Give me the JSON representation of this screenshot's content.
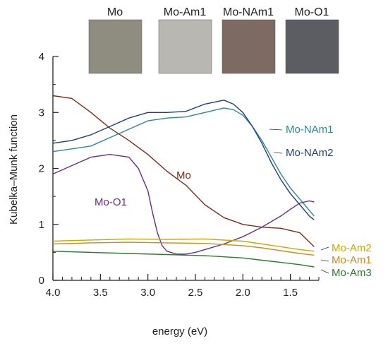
{
  "chart_data": {
    "type": "line",
    "title": "",
    "xlabel": "energy (eV)",
    "ylabel": "Kubelka–Munk function",
    "xlim": [
      4.0,
      1.2
    ],
    "ylim": [
      0,
      4
    ],
    "x_reversed": true,
    "x_ticks": [
      4.0,
      3.5,
      3.0,
      2.5,
      2.0,
      1.5
    ],
    "x_tick_labels": [
      "4.0",
      "3.5",
      "3.0",
      "2.5",
      "2.0",
      "1.5"
    ],
    "y_ticks": [
      0,
      1,
      2,
      3,
      4
    ],
    "y_tick_labels": [
      "0",
      "1",
      "2",
      "3",
      "4"
    ],
    "grid": false,
    "legend": "none (series labeled directly on the plot)",
    "sample_photos": [
      {
        "label": "Mo",
        "color": "#8f8c80"
      },
      {
        "label": "Mo-Am1",
        "color": "#b9b7b2"
      },
      {
        "label": "Mo-NAm1",
        "color": "#7d6a62"
      },
      {
        "label": "Mo-O1",
        "color": "#5b5d63"
      }
    ],
    "series": [
      {
        "name": "Mo",
        "color": "#7a2e1a",
        "x": [
          4.0,
          3.8,
          3.6,
          3.4,
          3.2,
          3.0,
          2.8,
          2.6,
          2.4,
          2.2,
          2.0,
          1.8,
          1.6,
          1.4,
          1.25
        ],
        "y": [
          3.3,
          3.25,
          3.0,
          2.72,
          2.5,
          2.25,
          1.95,
          1.7,
          1.35,
          1.12,
          1.0,
          0.95,
          0.93,
          0.85,
          0.6
        ]
      },
      {
        "name": "Mo-NAm1",
        "color": "#2a8a8a",
        "x": [
          4.0,
          3.8,
          3.6,
          3.4,
          3.2,
          3.0,
          2.8,
          2.6,
          2.4,
          2.2,
          2.1,
          2.0,
          1.9,
          1.8,
          1.7,
          1.6,
          1.5,
          1.4,
          1.3,
          1.25
        ],
        "y": [
          2.3,
          2.35,
          2.4,
          2.55,
          2.7,
          2.85,
          2.9,
          2.92,
          3.0,
          3.08,
          3.05,
          2.95,
          2.75,
          2.5,
          2.2,
          1.9,
          1.65,
          1.45,
          1.25,
          1.15
        ]
      },
      {
        "name": "Mo-NAm2",
        "color": "#1f3f85",
        "x": [
          4.0,
          3.8,
          3.6,
          3.4,
          3.2,
          3.0,
          2.8,
          2.6,
          2.4,
          2.2,
          2.1,
          2.0,
          1.9,
          1.8,
          1.7,
          1.6,
          1.5,
          1.4,
          1.3,
          1.25
        ],
        "y": [
          2.45,
          2.5,
          2.6,
          2.75,
          2.9,
          3.0,
          3.0,
          3.02,
          3.15,
          3.22,
          3.15,
          3.0,
          2.75,
          2.45,
          2.1,
          1.8,
          1.55,
          1.35,
          1.15,
          1.08
        ]
      },
      {
        "name": "Mo-O1",
        "color": "#6a2c8c",
        "x": [
          4.0,
          3.8,
          3.6,
          3.4,
          3.2,
          3.1,
          3.0,
          2.95,
          2.9,
          2.85,
          2.8,
          2.7,
          2.6,
          2.5,
          2.4,
          2.2,
          2.0,
          1.8,
          1.6,
          1.5,
          1.4,
          1.3,
          1.25
        ],
        "y": [
          1.9,
          2.05,
          2.2,
          2.25,
          2.2,
          2.0,
          1.6,
          1.2,
          0.85,
          0.62,
          0.52,
          0.47,
          0.47,
          0.5,
          0.55,
          0.65,
          0.78,
          0.95,
          1.15,
          1.27,
          1.38,
          1.42,
          1.4
        ]
      },
      {
        "name": "Mo-Am2",
        "color": "#c9a800",
        "x": [
          4.0,
          3.6,
          3.2,
          2.8,
          2.4,
          2.0,
          1.8,
          1.6,
          1.4,
          1.25
        ],
        "y": [
          0.7,
          0.72,
          0.74,
          0.73,
          0.74,
          0.7,
          0.65,
          0.6,
          0.55,
          0.52
        ]
      },
      {
        "name": "Mo-Am1",
        "color": "#d18a1c",
        "x": [
          4.0,
          3.6,
          3.2,
          2.8,
          2.4,
          2.0,
          1.8,
          1.6,
          1.4,
          1.25
        ],
        "y": [
          0.65,
          0.67,
          0.68,
          0.67,
          0.66,
          0.62,
          0.58,
          0.53,
          0.48,
          0.45
        ]
      },
      {
        "name": "Mo-Am3",
        "color": "#2e7a2e",
        "x": [
          4.0,
          3.6,
          3.2,
          2.8,
          2.4,
          2.0,
          1.8,
          1.6,
          1.4,
          1.25
        ],
        "y": [
          0.52,
          0.5,
          0.48,
          0.46,
          0.44,
          0.4,
          0.36,
          0.32,
          0.28,
          0.24
        ]
      }
    ]
  }
}
